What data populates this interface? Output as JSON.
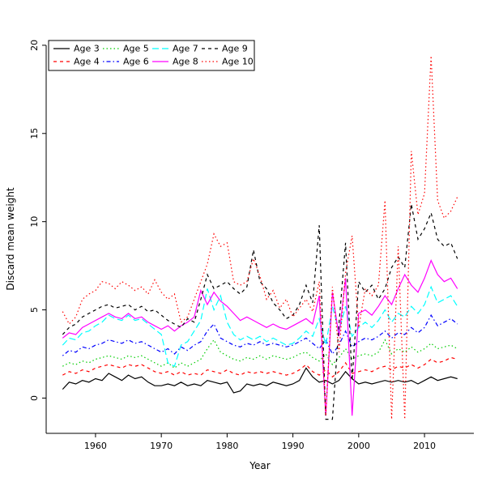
{
  "chart_data": {
    "type": "line",
    "title": "",
    "xlabel": "Year",
    "ylabel": "Discard mean weight",
    "x_ticks": [
      1960,
      1970,
      1980,
      1990,
      2000,
      2010
    ],
    "y_ticks": [
      0,
      5,
      10,
      15,
      20
    ],
    "xlim": [
      1952.5,
      2017.5
    ],
    "ylim": [
      -2,
      20.5
    ],
    "grid": false,
    "legend_position": "top-left",
    "legend_columns": 4,
    "background": "#ffffff",
    "x": [
      1955,
      1956,
      1957,
      1958,
      1959,
      1960,
      1961,
      1962,
      1963,
      1964,
      1965,
      1966,
      1967,
      1968,
      1969,
      1970,
      1971,
      1972,
      1973,
      1974,
      1975,
      1976,
      1977,
      1978,
      1979,
      1980,
      1981,
      1982,
      1983,
      1984,
      1985,
      1986,
      1987,
      1988,
      1989,
      1990,
      1991,
      1992,
      1993,
      1994,
      1995,
      1996,
      1997,
      1998,
      1999,
      2000,
      2001,
      2002,
      2003,
      2004,
      2005,
      2006,
      2007,
      2008,
      2009,
      2010,
      2011,
      2012,
      2013,
      2014,
      2015
    ],
    "series": [
      {
        "name": "Age 3",
        "color": "#000000",
        "linetype": "solid",
        "values": [
          0.5,
          0.9,
          0.8,
          1.0,
          0.9,
          1.1,
          1.0,
          1.4,
          1.2,
          1.0,
          1.3,
          1.1,
          1.2,
          0.9,
          0.7,
          0.7,
          0.8,
          0.7,
          0.9,
          0.7,
          0.8,
          0.7,
          1.0,
          0.9,
          0.8,
          0.9,
          0.3,
          0.4,
          0.8,
          0.7,
          0.8,
          0.7,
          0.9,
          0.8,
          0.7,
          0.8,
          1.0,
          1.7,
          1.2,
          0.9,
          1.0,
          0.8,
          1.0,
          1.5,
          1.1,
          0.8,
          0.9,
          0.8,
          0.9,
          1.0,
          0.9,
          1.0,
          0.9,
          1.0,
          0.8,
          1.0,
          1.2,
          1.0,
          1.1,
          1.2,
          1.1
        ]
      },
      {
        "name": "Age 4",
        "color": "#ff0000",
        "linetype": "dashed",
        "values": [
          1.3,
          1.5,
          1.4,
          1.6,
          1.5,
          1.7,
          1.8,
          1.9,
          1.8,
          1.7,
          1.9,
          1.8,
          1.9,
          1.7,
          1.5,
          1.4,
          1.5,
          1.3,
          1.5,
          1.3,
          1.4,
          1.3,
          1.6,
          1.5,
          1.4,
          1.6,
          1.4,
          1.3,
          1.5,
          1.4,
          1.5,
          1.4,
          1.5,
          1.4,
          1.3,
          1.4,
          1.6,
          1.9,
          1.5,
          1.3,
          1.6,
          1.2,
          1.5,
          2.0,
          1.4,
          1.5,
          1.6,
          1.5,
          1.7,
          1.8,
          1.6,
          1.8,
          1.7,
          1.9,
          1.7,
          1.9,
          2.2,
          2.0,
          2.1,
          2.3,
          2.2
        ]
      },
      {
        "name": "Age 5",
        "color": "#00cd00",
        "linetype": "dotted",
        "values": [
          1.8,
          2.0,
          1.9,
          2.1,
          2.0,
          2.2,
          2.3,
          2.4,
          2.3,
          2.2,
          2.4,
          2.3,
          2.4,
          2.2,
          2.0,
          1.8,
          2.0,
          1.7,
          2.0,
          1.8,
          2.0,
          2.2,
          2.8,
          3.3,
          2.6,
          2.4,
          2.2,
          2.1,
          2.3,
          2.2,
          2.4,
          2.2,
          2.4,
          2.3,
          2.2,
          2.3,
          2.5,
          2.6,
          2.3,
          2.1,
          2.5,
          1.9,
          2.3,
          2.8,
          2.2,
          2.4,
          2.5,
          2.4,
          2.6,
          3.3,
          2.5,
          2.8,
          2.6,
          2.9,
          2.6,
          2.8,
          3.1,
          2.8,
          2.9,
          3.0,
          2.8
        ]
      },
      {
        "name": "Age 6",
        "color": "#0000ff",
        "linetype": "dotdash",
        "values": [
          2.4,
          2.7,
          2.6,
          2.9,
          2.8,
          3.0,
          3.1,
          3.3,
          3.2,
          3.1,
          3.3,
          3.1,
          3.2,
          3.0,
          2.8,
          2.6,
          2.8,
          2.5,
          2.9,
          2.7,
          3.0,
          3.2,
          3.8,
          4.2,
          3.4,
          3.2,
          3.0,
          2.9,
          3.1,
          3.0,
          3.2,
          3.0,
          3.1,
          3.0,
          2.9,
          3.0,
          3.2,
          3.4,
          3.1,
          2.8,
          3.3,
          2.5,
          3.0,
          3.8,
          2.9,
          3.2,
          3.4,
          3.3,
          3.5,
          3.8,
          3.4,
          3.7,
          3.6,
          4.0,
          3.7,
          4.0,
          4.7,
          4.1,
          4.3,
          4.5,
          4.2
        ]
      },
      {
        "name": "Age 7",
        "color": "#00ffff",
        "linetype": "longdash",
        "values": [
          3.0,
          3.4,
          3.3,
          3.7,
          3.8,
          4.1,
          4.3,
          4.7,
          4.5,
          4.4,
          4.7,
          4.4,
          4.5,
          4.2,
          3.9,
          3.6,
          2.0,
          1.8,
          3.0,
          3.2,
          3.8,
          4.4,
          6.2,
          5.0,
          5.8,
          4.3,
          3.6,
          3.3,
          3.5,
          3.3,
          3.5,
          3.2,
          3.4,
          3.2,
          3.0,
          3.1,
          3.4,
          3.8,
          3.5,
          4.5,
          3.0,
          5.2,
          3.8,
          5.2,
          3.5,
          4.0,
          4.3,
          4.0,
          4.4,
          5.0,
          4.3,
          4.8,
          4.6,
          5.2,
          4.8,
          5.3,
          6.3,
          5.4,
          5.6,
          5.8,
          5.2
        ]
      },
      {
        "name": "Age 8",
        "color": "#ff00ff",
        "linetype": "solid",
        "values": [
          3.4,
          3.7,
          3.6,
          4.0,
          4.2,
          4.4,
          4.6,
          4.8,
          4.6,
          4.5,
          4.8,
          4.5,
          4.6,
          4.3,
          4.1,
          3.9,
          4.1,
          3.8,
          4.1,
          4.3,
          4.6,
          6.1,
          5.3,
          6.0,
          5.5,
          5.2,
          4.8,
          4.4,
          4.6,
          4.4,
          4.2,
          4.0,
          4.2,
          4.0,
          3.9,
          4.1,
          4.3,
          4.5,
          4.2,
          5.8,
          -1.0,
          6.0,
          3.5,
          6.8,
          -1.0,
          4.8,
          5.0,
          4.7,
          5.2,
          5.8,
          5.3,
          6.2,
          7.0,
          6.4,
          6.0,
          6.8,
          7.8,
          7.0,
          6.6,
          6.8,
          6.2
        ]
      },
      {
        "name": "Age 9",
        "color": "#000000",
        "linetype": "dashed",
        "values": [
          3.6,
          4.0,
          4.2,
          4.6,
          4.8,
          5.0,
          5.2,
          5.3,
          5.1,
          5.2,
          5.3,
          5.0,
          5.2,
          4.9,
          5.0,
          4.7,
          4.4,
          4.2,
          4.0,
          4.5,
          4.3,
          5.6,
          7.0,
          6.2,
          6.4,
          6.6,
          6.2,
          5.9,
          6.3,
          8.4,
          6.6,
          6.2,
          5.4,
          5.0,
          4.5,
          4.7,
          5.3,
          6.4,
          5.4,
          9.8,
          -1.2,
          -1.2,
          4.2,
          8.8,
          1.0,
          6.6,
          6.0,
          6.4,
          5.6,
          6.2,
          7.4,
          8.0,
          7.4,
          11.0,
          9.0,
          9.6,
          10.5,
          9.0,
          8.6,
          8.8,
          7.9
        ]
      },
      {
        "name": "Age 10",
        "color": "#ff0000",
        "linetype": "dotted",
        "values": [
          4.9,
          4.2,
          4.6,
          5.6,
          5.9,
          6.1,
          6.6,
          6.5,
          6.2,
          6.6,
          6.4,
          6.1,
          6.3,
          5.9,
          6.7,
          6.0,
          5.6,
          5.9,
          4.3,
          4.6,
          5.6,
          6.6,
          7.6,
          9.3,
          8.6,
          8.8,
          6.6,
          6.4,
          6.6,
          7.9,
          6.9,
          5.6,
          6.1,
          5.1,
          5.6,
          4.6,
          5.1,
          5.6,
          4.9,
          6.6,
          -1.0,
          6.3,
          2.6,
          7.1,
          9.2,
          4.0,
          6.2,
          5.8,
          6.4,
          11.2,
          -1.2,
          8.6,
          -1.2,
          14.0,
          10.4,
          11.6,
          19.4,
          11.2,
          10.2,
          10.6,
          11.4
        ]
      }
    ]
  }
}
